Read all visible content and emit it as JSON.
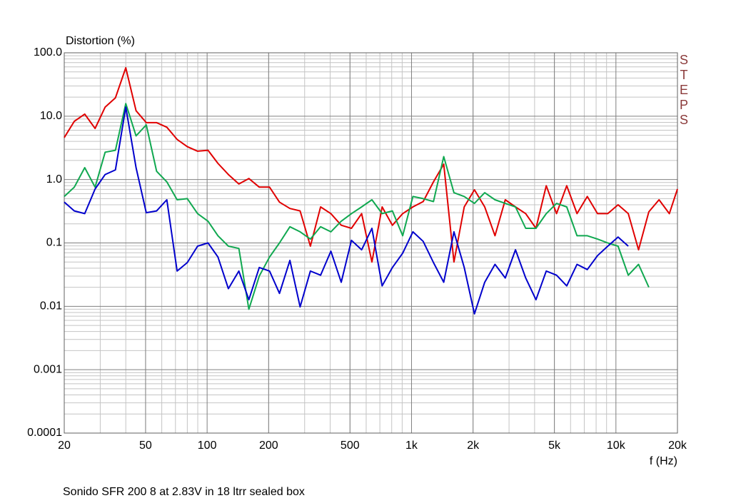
{
  "chart_data": {
    "type": "line",
    "title": "Distortion (%)",
    "x_label": "f (Hz)",
    "caption": "Sonido SFR 200 8 at 2.83V in 18 ltrr sealed box",
    "watermark": "STEPS",
    "xscale": "log",
    "yscale": "log",
    "grid": true,
    "xlim": [
      20,
      20000
    ],
    "ylim": [
      0.0001,
      100
    ],
    "xticks": [
      20,
      50,
      100,
      200,
      500,
      {
        "value": 1000,
        "label": "1k"
      },
      {
        "value": 2000,
        "label": "2k"
      },
      {
        "value": 5000,
        "label": "5k"
      },
      {
        "value": 10000,
        "label": "10k"
      },
      {
        "value": 20000,
        "label": "20k"
      }
    ],
    "yticks": [
      {
        "value": 100,
        "label": "100.0"
      },
      {
        "value": 10,
        "label": "10.0"
      },
      {
        "value": 1,
        "label": "1.0"
      },
      0.1,
      0.01,
      0.001,
      0.0001
    ],
    "x": [
      20,
      22.4,
      25.2,
      28.3,
      31.7,
      35.6,
      40,
      44.9,
      50.4,
      56.6,
      63.5,
      71.3,
      80,
      89.8,
      101,
      113,
      127,
      143,
      160,
      180,
      202,
      226,
      254,
      285,
      320,
      359,
      403,
      453,
      508,
      570,
      640,
      718,
      806,
      905,
      1016,
      1140,
      1280,
      1437,
      1613,
      1810,
      2032,
      2281,
      2560,
      2874,
      3225,
      3620,
      4064,
      4561,
      5120,
      5747,
      6451,
      7241,
      8127,
      9123,
      10240,
      11494,
      12902,
      14482,
      16255,
      18246,
      20000
    ],
    "series": [
      {
        "name": "Red",
        "color": "#e00000",
        "values": [
          4.6,
          8.3,
          10.8,
          6.4,
          13.9,
          19.5,
          58,
          12.2,
          7.9,
          7.9,
          6.7,
          4.3,
          3.3,
          2.8,
          2.9,
          1.8,
          1.2,
          0.85,
          1.04,
          0.76,
          0.76,
          0.44,
          0.35,
          0.32,
          0.089,
          0.37,
          0.29,
          0.19,
          0.17,
          0.29,
          0.05,
          0.37,
          0.19,
          0.29,
          0.37,
          0.45,
          0.92,
          1.75,
          0.05,
          0.37,
          0.69,
          0.37,
          0.13,
          0.48,
          0.37,
          0.29,
          0.17,
          0.8,
          0.29,
          0.8,
          0.29,
          0.54,
          0.29,
          0.29,
          0.4,
          0.29,
          0.078,
          0.31,
          0.48,
          0.29,
          0.71
        ]
      },
      {
        "name": "Green",
        "color": "#10a850",
        "values": [
          0.54,
          0.76,
          1.54,
          0.76,
          2.7,
          2.9,
          15.8,
          4.9,
          7.3,
          1.35,
          0.92,
          0.48,
          0.5,
          0.29,
          0.22,
          0.13,
          0.089,
          0.082,
          0.009,
          0.03,
          0.06,
          0.1,
          0.18,
          0.15,
          0.115,
          0.18,
          0.15,
          0.22,
          0.29,
          0.37,
          0.48,
          0.29,
          0.32,
          0.13,
          0.54,
          0.5,
          0.45,
          2.3,
          0.62,
          0.54,
          0.42,
          0.62,
          0.48,
          0.42,
          0.37,
          0.17,
          0.17,
          0.29,
          0.42,
          0.37,
          0.13,
          0.13,
          0.115,
          0.1,
          0.089,
          0.031,
          0.046,
          0.02,
          null,
          null,
          null
        ]
      },
      {
        "name": "Blue",
        "color": "#0000cc",
        "values": [
          0.44,
          0.32,
          0.29,
          0.71,
          1.2,
          1.42,
          13.9,
          1.54,
          0.3,
          0.32,
          0.48,
          0.036,
          0.049,
          0.089,
          0.1,
          0.06,
          0.019,
          0.036,
          0.0127,
          0.041,
          0.036,
          0.016,
          0.053,
          0.0098,
          0.036,
          0.031,
          0.074,
          0.024,
          0.11,
          0.078,
          0.17,
          0.021,
          0.041,
          0.069,
          0.15,
          0.106,
          0.049,
          0.024,
          0.15,
          0.041,
          0.0076,
          0.024,
          0.046,
          0.028,
          0.078,
          0.028,
          0.0127,
          0.036,
          0.031,
          0.021,
          0.046,
          0.038,
          0.063,
          0.089,
          0.124,
          0.089,
          null,
          null,
          null,
          null,
          null
        ]
      }
    ]
  }
}
